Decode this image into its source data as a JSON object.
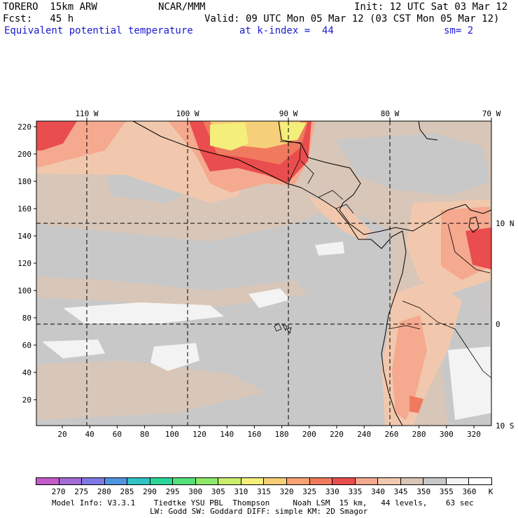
{
  "header": {
    "model": "TORERO  15km ARW",
    "org": "NCAR/MMM",
    "init": "Init: 12 UTC Sat 03 Mar 12",
    "fcst": "Fcst:   45 h",
    "valid": "Valid: 09 UTC Mon 05 Mar 12 (03 CST Mon 05 Mar 12)",
    "field": "Equivalent potential temperature",
    "level": "at k-index =  44",
    "smooth": "sm= 2"
  },
  "map": {
    "lon_labels": [
      "110 W",
      "100 W",
      "90 W",
      "80 W",
      "70 W"
    ],
    "lat_labels": [
      "10 N",
      "0",
      "10 S"
    ],
    "y_ticks": [
      "220",
      "200",
      "180",
      "160",
      "140",
      "120",
      "100",
      "80",
      "60",
      "40",
      "20"
    ],
    "x_ticks": [
      "20",
      "40",
      "60",
      "80",
      "100",
      "120",
      "140",
      "160",
      "180",
      "200",
      "220",
      "240",
      "260",
      "280",
      "300",
      "320"
    ]
  },
  "colorbar": {
    "labels": [
      "270",
      "275",
      "280",
      "285",
      "290",
      "295",
      "300",
      "305",
      "310",
      "315",
      "320",
      "325",
      "330",
      "335",
      "340",
      "345",
      "350",
      "355",
      "360"
    ],
    "unit": "K",
    "colors": [
      "#c35ac8",
      "#a26bd6",
      "#7f78e6",
      "#4f95e0",
      "#2fc3c4",
      "#2ad79a",
      "#55e07a",
      "#8fe86a",
      "#c9ee6c",
      "#f3ef7a",
      "#f6cf79",
      "#f6a273",
      "#f07a5e",
      "#ea4d4d",
      "#f5a98f",
      "#f1c8ae",
      "#d8c6b8",
      "#c8c8c8",
      "#f3f3f3",
      "#ffffff"
    ]
  },
  "footer": {
    "line1": "Model Info: V3.3.1    Tiedtke YSU PBL  Thompson     Noah LSM  15 km,   44 levels,    63 sec",
    "line2": "LW: Godd SW: Goddard DIFF: simple KM: 2D Smagor"
  }
}
